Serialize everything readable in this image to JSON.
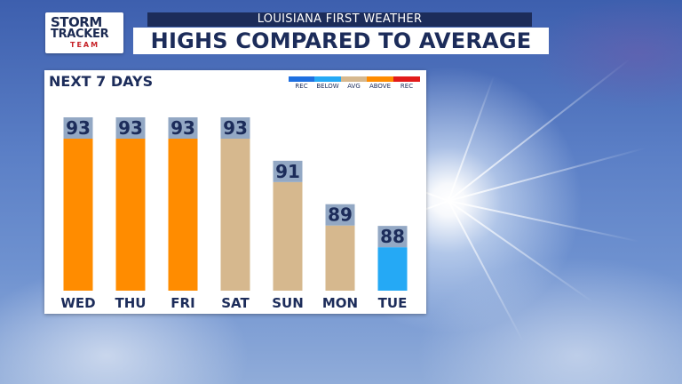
{
  "header": {
    "subtitle": "LOUISIANA FIRST WEATHER",
    "title": "HIGHS COMPARED TO AVERAGE"
  },
  "logo": {
    "line1": "STORM",
    "line2": "TRACKER",
    "line3": "TEAM"
  },
  "legend": {
    "items": [
      {
        "label": "REC",
        "color": "#1e6fe0"
      },
      {
        "label": "BELOW",
        "color": "#25a9f5"
      },
      {
        "label": "AVG",
        "color": "#d6b88e"
      },
      {
        "label": "ABOVE",
        "color": "#ff8c00"
      },
      {
        "label": "REC",
        "color": "#e21b1b"
      }
    ]
  },
  "chart_data": {
    "type": "bar",
    "title": "NEXT 7 DAYS",
    "categories": [
      "WED",
      "THU",
      "FRI",
      "SAT",
      "SUN",
      "MON",
      "TUE"
    ],
    "values": [
      93,
      93,
      93,
      93,
      91,
      89,
      88
    ],
    "categories_class": [
      "ABOVE",
      "ABOVE",
      "ABOVE",
      "AVG",
      "AVG",
      "AVG",
      "BELOW"
    ],
    "colors": {
      "ABOVE": "#ff8c00",
      "AVG": "#d6b88e",
      "BELOW": "#25a9f5"
    },
    "label_bg_color": "#93a8c4",
    "ylim": [
      0,
      93
    ]
  }
}
